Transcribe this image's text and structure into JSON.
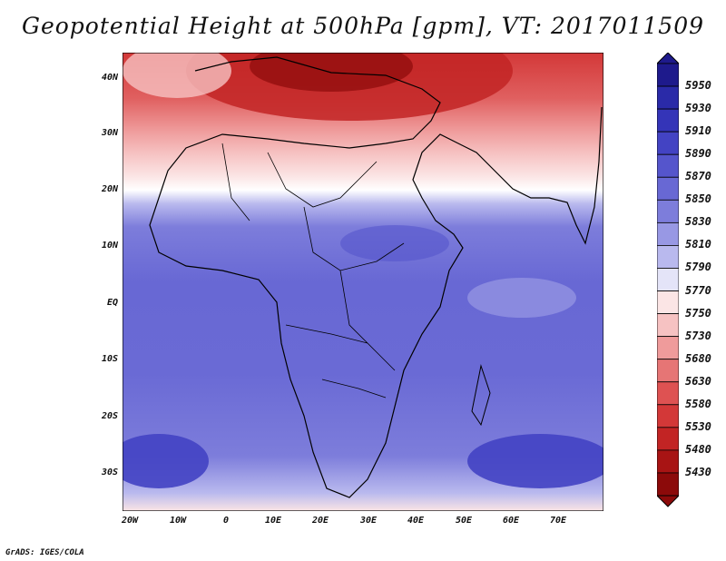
{
  "title": "Geopotential Height at 500hPa [gpm], VT: 2017011509",
  "credit": "GrADS: IGES/COLA",
  "map": {
    "lat_labels": [
      "40N",
      "30N",
      "20N",
      "10N",
      "EQ",
      "10S",
      "20S",
      "30S"
    ],
    "lon_labels": [
      "20W",
      "10W",
      "0",
      "10E",
      "20E",
      "30E",
      "40E",
      "50E",
      "60E",
      "70E"
    ]
  },
  "colorbar": {
    "levels": [
      "5950",
      "5930",
      "5910",
      "5890",
      "5870",
      "5850",
      "5830",
      "5810",
      "5790",
      "5770",
      "5750",
      "5730",
      "5680",
      "5630",
      "5580",
      "5530",
      "5480",
      "5430"
    ],
    "colors": [
      "#1e1a8c",
      "#2a2aa8",
      "#3434b8",
      "#4343c3",
      "#5555cc",
      "#6868d4",
      "#7d7ddb",
      "#9898e4",
      "#b9b9ee",
      "#e4e4f8",
      "#fbe5e5",
      "#f6c2c2",
      "#ef9b9b",
      "#e67575",
      "#de5252",
      "#d33838",
      "#c22424",
      "#a81414",
      "#8c0a0a"
    ]
  }
}
